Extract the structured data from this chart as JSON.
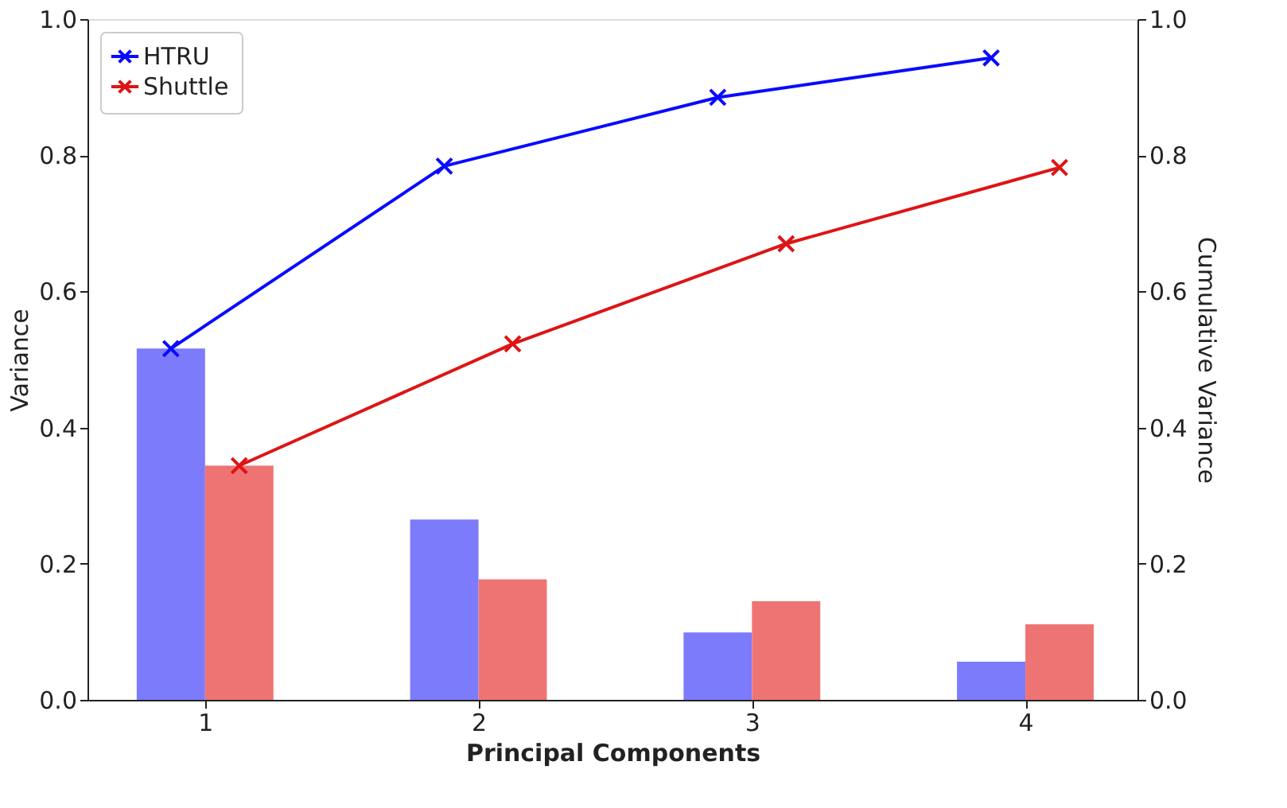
{
  "chart_data": {
    "type": "bar",
    "xlabel": "Principal Components",
    "ylabel": "Variance",
    "y2label": "Cumulative Variance",
    "categories": [
      "1",
      "2",
      "3",
      "4"
    ],
    "series": [
      {
        "color": "#7b7bfb",
        "values": [
          0.516,
          0.265,
          0.099,
          0.056
        ]
      },
      {
        "color": "#ee7474",
        "values": [
          0.344,
          0.177,
          0.145,
          0.111
        ]
      },
      {
        "type": "line",
        "name": "HTRU",
        "color": "#0a0aff",
        "axis": "y2",
        "marker": "cross",
        "values": [
          0.516,
          0.784,
          0.885,
          0.943
        ]
      },
      {
        "type": "line",
        "name": "Shuttle",
        "color": "#dd1515",
        "axis": "y2",
        "marker": "cross",
        "values": [
          0.344,
          0.523,
          0.67,
          0.782
        ]
      }
    ],
    "ylim": [
      0,
      1.0
    ],
    "yticks": [
      {
        "value": 0,
        "label": "0.0"
      },
      0.2,
      0.4,
      0.6,
      0.8,
      {
        "value": 1,
        "label": "1.0"
      }
    ],
    "y2lim": [
      0,
      1.0
    ],
    "y2ticks": [
      {
        "value": 0,
        "label": "0.0"
      },
      0.2,
      0.4,
      0.6,
      0.8,
      {
        "value": 1,
        "label": "1.0"
      }
    ],
    "grid": false,
    "legend": "top left"
  }
}
